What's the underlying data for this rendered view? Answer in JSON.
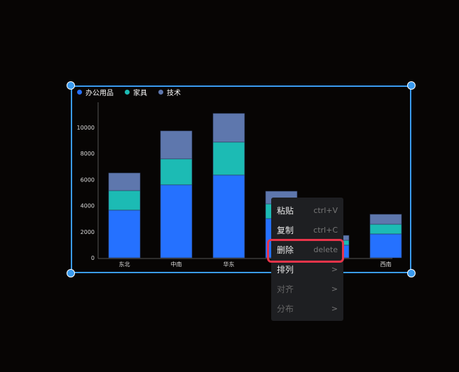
{
  "chart_data": {
    "type": "bar",
    "stacked": true,
    "categories": [
      "东北",
      "中南",
      "华东",
      "",
      "",
      "西南"
    ],
    "series": [
      {
        "name": "办公用品",
        "color": "#2571ff",
        "values": [
          3660,
          5600,
          6350,
          3010,
          970,
          1830
        ]
      },
      {
        "name": "家具",
        "color": "#1cbbb4",
        "values": [
          1500,
          1990,
          2530,
          1130,
          375,
          750
        ]
      },
      {
        "name": "技术",
        "color": "#5e77ad",
        "values": [
          1350,
          2150,
          2200,
          970,
          375,
          760
        ]
      }
    ],
    "yticks": [
      "0",
      "2000",
      "4000",
      "6000",
      "8000",
      "10000"
    ],
    "ylim": [
      0,
      12000
    ],
    "legend": "top-left",
    "grid": false
  },
  "menu": {
    "items": [
      {
        "label": "粘贴",
        "shortcut": "ctrl+V",
        "disabled": false
      },
      {
        "label": "复制",
        "shortcut": "ctrl+C",
        "disabled": false
      },
      {
        "label": "删除",
        "shortcut": "delete",
        "disabled": false
      },
      {
        "label": "排列",
        "shortcut": ">",
        "disabled": false
      },
      {
        "label": "对齐",
        "shortcut": ">",
        "disabled": true
      },
      {
        "label": "分布",
        "shortcut": ">",
        "disabled": true
      }
    ]
  },
  "colors": {
    "selection": "#3a9bf0",
    "highlight": "#e8344a"
  }
}
